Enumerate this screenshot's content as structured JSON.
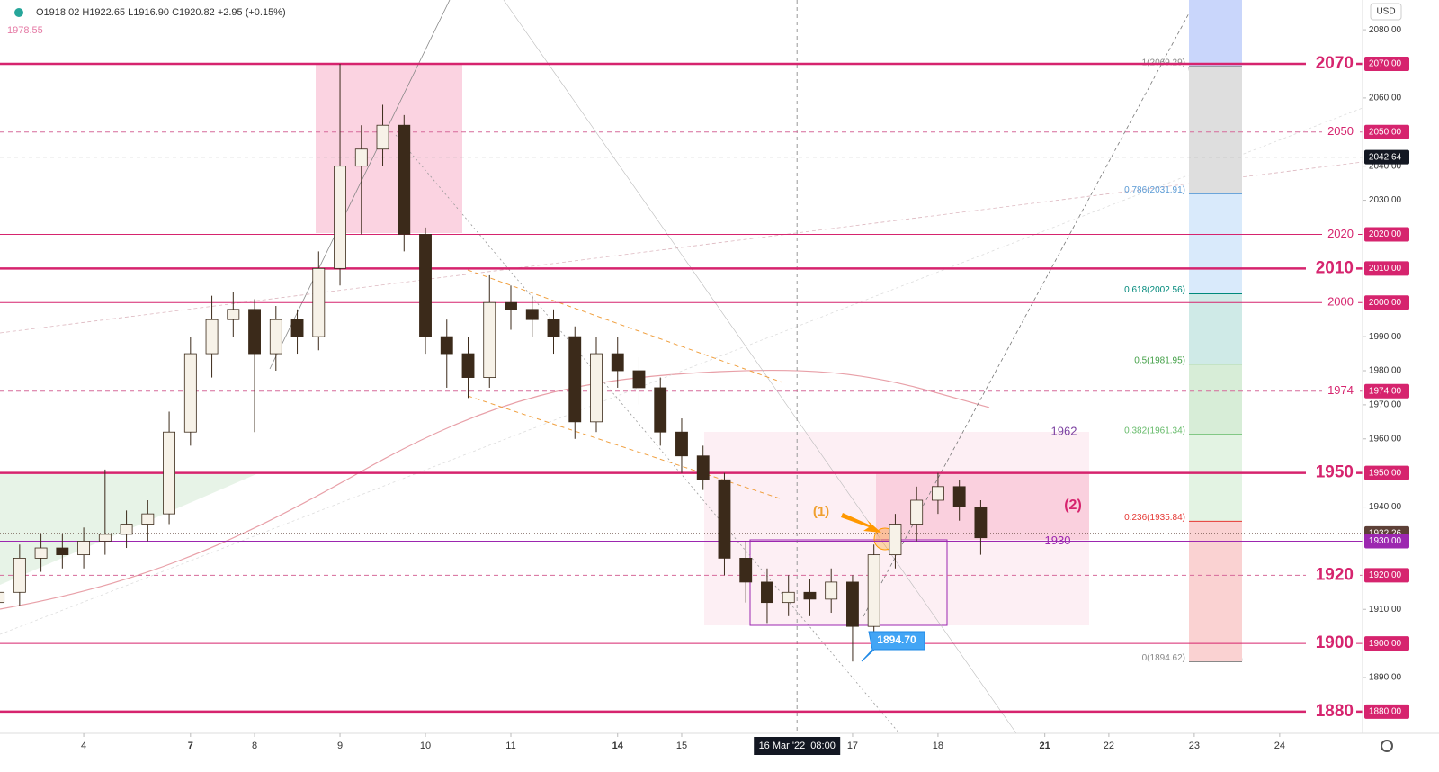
{
  "chart_data": {
    "type": "candlestick",
    "header": "O1918.02 H1922.65 L1916.90 C1920.82 +2.95 (+0.15%)",
    "ma_label": "1978.55",
    "currency": "USD",
    "crosshair": {
      "x": 8.35,
      "x_label": "16 Mar '22  08:00",
      "y": 2042.64,
      "y_label": "2042.64"
    },
    "last_price": {
      "value": 1932.26,
      "label": "1932.26"
    },
    "xlim": [
      -0.98,
      14.97
    ],
    "xticks": [
      {
        "value": 0,
        "label": "4"
      },
      {
        "value": 1.25,
        "label": "7"
      },
      {
        "value": 2,
        "label": "8"
      },
      {
        "value": 3,
        "label": "9"
      },
      {
        "value": 4,
        "label": "10"
      },
      {
        "value": 5,
        "label": "11"
      },
      {
        "value": 6.25,
        "label": "14"
      },
      {
        "value": 7,
        "label": "15"
      },
      {
        "value": 9,
        "label": "17"
      },
      {
        "value": 10,
        "label": "18"
      },
      {
        "value": 11.25,
        "label": "21"
      },
      {
        "value": 12,
        "label": "22"
      },
      {
        "value": 13,
        "label": "23"
      },
      {
        "value": 14,
        "label": "24"
      }
    ],
    "ylim": [
      1873.64,
      2088.74
    ],
    "yticks": [
      {
        "value": 2080,
        "label": "2080.00"
      },
      {
        "value": 2060,
        "label": "2060.00"
      },
      {
        "value": 2040,
        "label": "2040.00"
      },
      {
        "value": 2030,
        "label": "2030.00"
      },
      {
        "value": 1990,
        "label": "1990.00"
      },
      {
        "value": 1980,
        "label": "1980.00"
      },
      {
        "value": 1970,
        "label": "1970.00"
      },
      {
        "value": 1960,
        "label": "1960.00"
      },
      {
        "value": 1940,
        "label": "1940.00"
      },
      {
        "value": 1910,
        "label": "1910.00"
      },
      {
        "value": 1890,
        "label": "1890.00"
      }
    ],
    "levels": [
      {
        "value": 2070,
        "label": "2070",
        "axis_label": "2070.00",
        "style": "thick",
        "emphasis": true
      },
      {
        "value": 2050,
        "label": "2050",
        "axis_label": "2050.00",
        "style": "dashed",
        "emphasis": false
      },
      {
        "value": 2020,
        "label": "2020",
        "axis_label": "2020.00",
        "style": "thin",
        "emphasis": false
      },
      {
        "value": 2010,
        "label": "2010",
        "axis_label": "2010.00",
        "style": "thick",
        "emphasis": true
      },
      {
        "value": 2000,
        "label": "2000",
        "axis_label": "2000.00",
        "style": "thin",
        "emphasis": false
      },
      {
        "value": 1974,
        "label": "1974",
        "axis_label": "1974.00",
        "style": "dashed",
        "emphasis": false
      },
      {
        "value": 1950,
        "label": "1950",
        "axis_label": "1950.00",
        "style": "thick",
        "emphasis": true
      },
      {
        "value": 1930,
        "label": "1930",
        "axis_label": "1930.00",
        "style": "purple",
        "emphasis": false
      },
      {
        "value": 1920,
        "label": "1920",
        "axis_label": "1920.00",
        "style": "dashed",
        "emphasis": true
      },
      {
        "value": 1900,
        "label": "1900",
        "axis_label": "1900.00",
        "style": "thin",
        "emphasis": true
      },
      {
        "value": 1880,
        "label": "1880",
        "axis_label": "1880.00",
        "style": "thick",
        "emphasis": true
      }
    ],
    "fib": {
      "top_color": "#c9d6fb",
      "levels": [
        {
          "value": 2069.29,
          "label": "1(2069.29)",
          "color": "#888888",
          "band": "#dedede"
        },
        {
          "value": 2031.91,
          "label": "0.786(2031.91)",
          "color": "#5b9bd5",
          "band": "#d9eafb"
        },
        {
          "value": 2002.56,
          "label": "0.618(2002.56)",
          "color": "#00897b",
          "band": "#cfeae7"
        },
        {
          "value": 1981.95,
          "label": "0.5(1981.95)",
          "color": "#43a047",
          "band": "#d7edd7"
        },
        {
          "value": 1961.34,
          "label": "0.382(1961.34)",
          "color": "#66bb6a",
          "band": "#e3f3e3"
        },
        {
          "value": 1935.84,
          "label": "0.236(1935.84)",
          "color": "#e53935",
          "band": "#fad2d2"
        },
        {
          "value": 1894.62,
          "label": "0(1894.62)",
          "color": "#888888",
          "band": null
        }
      ]
    },
    "annotations": {
      "box_top": "1962",
      "box_level": "1930",
      "wave1": "(1)",
      "wave2": "(2)",
      "low": "1894.70"
    },
    "colors": {
      "up": "#f7f2e8",
      "down": "#3b2a1a",
      "level": "#d6246e",
      "purple": "#9c27b0"
    },
    "x": [
      -1,
      -0.75,
      -0.5,
      -0.25,
      0,
      0.25,
      0.5,
      0.75,
      1,
      1.25,
      1.5,
      1.75,
      2,
      2.25,
      2.5,
      2.75,
      3,
      3.25,
      3.5,
      3.75,
      4,
      4.25,
      4.5,
      4.75,
      5,
      5.25,
      5.5,
      5.75,
      6,
      6.25,
      6.5,
      6.75,
      7,
      7.25,
      7.5,
      7.75,
      8,
      8.25,
      8.5,
      8.75,
      9,
      9.25,
      9.5,
      9.75,
      10,
      10.25,
      10.5
    ],
    "open": [
      1912,
      1915,
      1925,
      1928,
      1926,
      1930,
      1932,
      1935,
      1938,
      1962,
      1985,
      1995,
      1998,
      1985,
      1995,
      1990,
      2010,
      2040,
      2045,
      2052,
      2020,
      1990,
      1985,
      1978,
      2000,
      1998,
      1995,
      1990,
      1965,
      1985,
      1980,
      1975,
      1962,
      1955,
      1948,
      1925,
      1918,
      1912,
      1915,
      1913,
      1918,
      1905,
      1926,
      1935,
      1942,
      1946,
      1940
    ],
    "high": [
      1919,
      1929,
      1932,
      1932,
      1934,
      1951,
      1939,
      1942,
      1968,
      1990,
      2002,
      2003,
      2001,
      1999,
      1998,
      2015,
      2070,
      2052,
      2058,
      2055,
      2022,
      1995,
      1990,
      2008,
      2005,
      2002,
      1998,
      1993,
      1990,
      1990,
      1984,
      1978,
      1966,
      1958,
      1950,
      1930,
      1922,
      1920,
      1919,
      1922,
      1920,
      1929,
      1938,
      1946,
      1950,
      1948,
      1942
    ],
    "low": [
      1907,
      1911,
      1921,
      1922,
      1922,
      1926,
      1928,
      1930,
      1935,
      1958,
      1978,
      1990,
      1962,
      1980,
      1985,
      1986,
      2005,
      2020,
      2040,
      2015,
      1985,
      1975,
      1972,
      1975,
      1992,
      1990,
      1985,
      1960,
      1962,
      1975,
      1970,
      1958,
      1950,
      1945,
      1920,
      1912,
      1906,
      1908,
      1908,
      1909,
      1894.7,
      1903,
      1922,
      1930,
      1938,
      1936,
      1926
    ],
    "close": [
      1915,
      1925,
      1928,
      1926,
      1930,
      1932,
      1935,
      1938,
      1962,
      1985,
      1995,
      1998,
      1985,
      1995,
      1990,
      2010,
      2040,
      2045,
      2052,
      2020,
      1990,
      1985,
      1978,
      2000,
      1998,
      1995,
      1990,
      1965,
      1985,
      1980,
      1975,
      1962,
      1955,
      1948,
      1925,
      1918,
      1912,
      1915,
      1913,
      1918,
      1905,
      1926,
      1935,
      1942,
      1946,
      1940,
      1931
    ]
  }
}
